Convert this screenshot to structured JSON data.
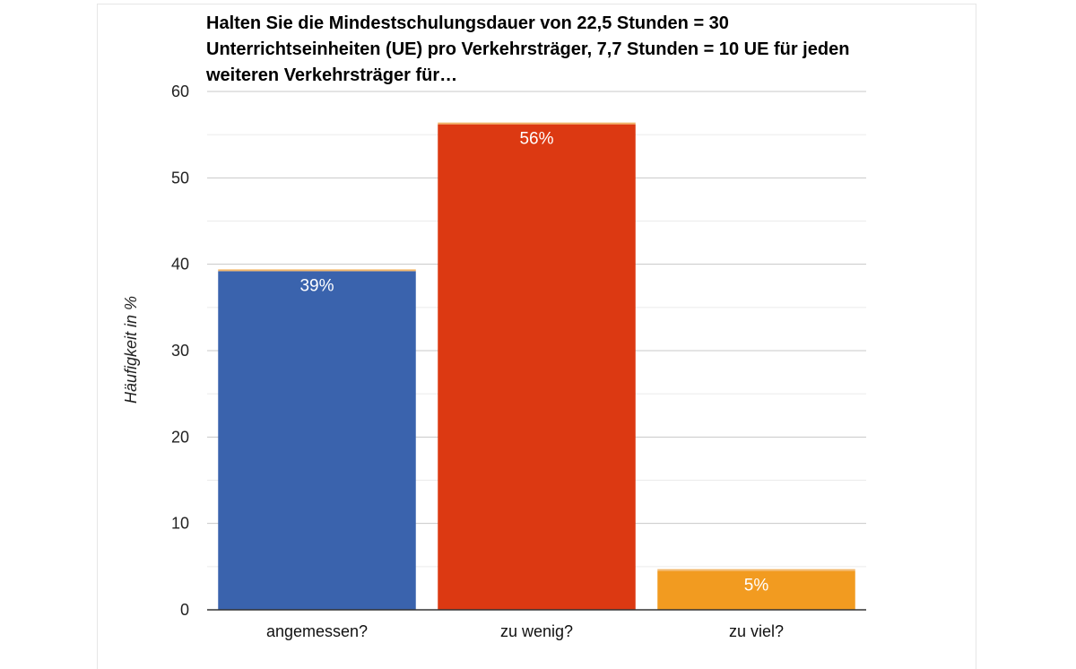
{
  "chart_data": {
    "type": "bar",
    "title": "Halten Sie die Mindestschulungsdauer von 22,5 Stunden = 30 Unterrichtseinheiten (UE) pro Verkehrsträger, 7,7 Stunden = 10 UE für jeden weiteren Verkehrsträger für…",
    "xlabel": "",
    "ylabel": "Häufigkeit in %",
    "ylim": [
      0,
      60
    ],
    "yticks": [
      0,
      10,
      20,
      30,
      40,
      50,
      60
    ],
    "minor_grid": true,
    "categories": [
      "angemessen?",
      "zu wenig?",
      "zu viel?"
    ],
    "values": [
      39.2,
      56.2,
      4.5
    ],
    "data_labels": [
      "39%",
      "56%",
      "5%"
    ],
    "colors": [
      "#3a63ad",
      "#dc3912",
      "#f29b20"
    ],
    "legend": "none"
  }
}
